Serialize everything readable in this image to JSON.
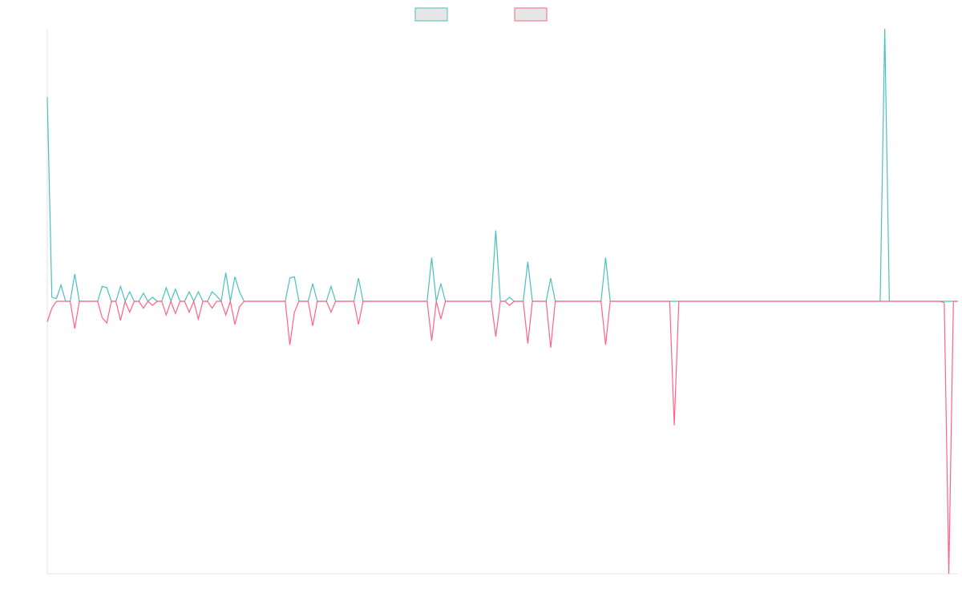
{
  "chart_data": {
    "type": "line",
    "title": "",
    "xlabel": "",
    "ylabel": "",
    "grid": false,
    "legend_position": "top-center",
    "colors": {
      "axis": "#e4e4e4",
      "series1": "#4bc0c0",
      "series2": "#ff6384",
      "legend_fill": "#e6e6e6"
    },
    "ylim": [
      -1,
      1
    ],
    "x_count": 200,
    "series": [
      {
        "name": "",
        "peaks": [
          [
            0,
            0.75
          ],
          [
            1,
            0.015
          ],
          [
            2,
            0.01
          ],
          [
            3,
            0.06
          ],
          [
            6,
            0.1
          ],
          [
            12,
            0.055
          ],
          [
            13,
            0.05
          ],
          [
            16,
            0.055
          ],
          [
            18,
            0.035
          ],
          [
            21,
            0.03
          ],
          [
            23,
            0.015
          ],
          [
            26,
            0.05
          ],
          [
            28,
            0.045
          ],
          [
            31,
            0.035
          ],
          [
            33,
            0.035
          ],
          [
            36,
            0.035
          ],
          [
            37,
            0.02
          ],
          [
            39,
            0.105
          ],
          [
            41,
            0.09
          ],
          [
            42,
            0.035
          ],
          [
            53,
            0.085
          ],
          [
            54,
            0.09
          ],
          [
            58,
            0.065
          ],
          [
            62,
            0.055
          ],
          [
            68,
            0.085
          ],
          [
            84,
            0.16
          ],
          [
            86,
            0.065
          ],
          [
            98,
            0.26
          ],
          [
            101,
            0.015
          ],
          [
            105,
            0.145
          ],
          [
            110,
            0.085
          ],
          [
            122,
            0.16
          ],
          [
            183,
            1.0
          ]
        ]
      },
      {
        "name": "",
        "peaks": [
          [
            0,
            -0.075
          ],
          [
            1,
            -0.025
          ],
          [
            6,
            -0.1
          ],
          [
            12,
            -0.06
          ],
          [
            13,
            -0.08
          ],
          [
            16,
            -0.07
          ],
          [
            18,
            -0.04
          ],
          [
            21,
            -0.025
          ],
          [
            23,
            -0.015
          ],
          [
            26,
            -0.05
          ],
          [
            28,
            -0.045
          ],
          [
            31,
            -0.04
          ],
          [
            33,
            -0.065
          ],
          [
            36,
            -0.025
          ],
          [
            39,
            -0.05
          ],
          [
            41,
            -0.085
          ],
          [
            42,
            -0.02
          ],
          [
            53,
            -0.16
          ],
          [
            54,
            -0.04
          ],
          [
            58,
            -0.09
          ],
          [
            62,
            -0.04
          ],
          [
            68,
            -0.085
          ],
          [
            84,
            -0.145
          ],
          [
            86,
            -0.065
          ],
          [
            98,
            -0.13
          ],
          [
            101,
            -0.015
          ],
          [
            105,
            -0.155
          ],
          [
            110,
            -0.17
          ],
          [
            122,
            -0.16
          ],
          [
            137,
            -0.455
          ],
          [
            196,
            -0.005
          ],
          [
            197,
            -1.0
          ]
        ]
      }
    ]
  }
}
